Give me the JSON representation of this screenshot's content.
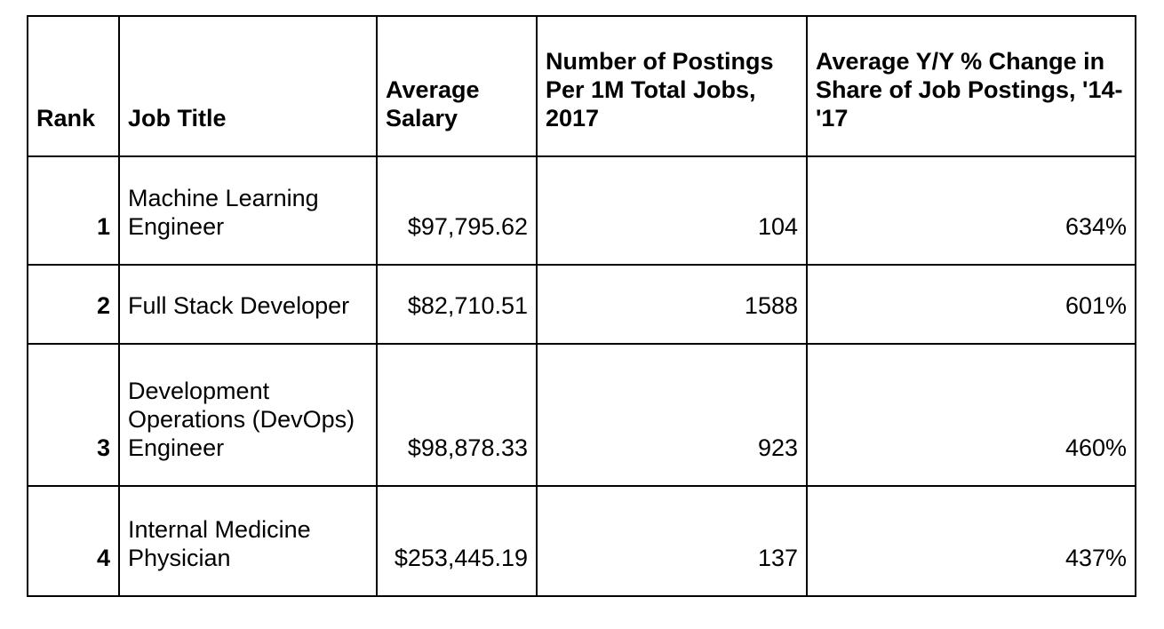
{
  "page": {
    "background_color": "#ffffff",
    "text_color": "#000000",
    "border_color": "#000000"
  },
  "table": {
    "columns": [
      {
        "id": "rank",
        "label": "Rank"
      },
      {
        "id": "job_title",
        "label": "Job Title"
      },
      {
        "id": "avg_salary",
        "label": "Average Salary"
      },
      {
        "id": "postings_per_1m",
        "label": "Number of Postings Per 1M Total Jobs, 2017"
      },
      {
        "id": "yy_change",
        "label": "Average Y/Y % Change in Share of Job Postings, '14-'17"
      }
    ],
    "rows": [
      {
        "rank": "1",
        "job_title": "Machine Learning Engineer",
        "avg_salary": "$97,795.62",
        "postings_per_1m": "104",
        "yy_change": "634%"
      },
      {
        "rank": "2",
        "job_title": "Full Stack Developer",
        "avg_salary": "$82,710.51",
        "postings_per_1m": "1588",
        "yy_change": "601%"
      },
      {
        "rank": "3",
        "job_title": "Development Operations (DevOps) Engineer",
        "avg_salary": "$98,878.33",
        "postings_per_1m": "923",
        "yy_change": "460%"
      },
      {
        "rank": "4",
        "job_title": "Internal Medicine Physician",
        "avg_salary": "$253,445.19",
        "postings_per_1m": "137",
        "yy_change": "437%"
      }
    ]
  },
  "chart_data": {
    "type": "table",
    "title": "",
    "columns": [
      "Rank",
      "Job Title",
      "Average Salary",
      "Number of Postings Per 1M Total Jobs, 2017",
      "Average Y/Y % Change in Share of Job Postings, '14-'17"
    ],
    "rows": [
      [
        1,
        "Machine Learning Engineer",
        97795.62,
        104,
        "634%"
      ],
      [
        2,
        "Full Stack Developer",
        82710.51,
        1588,
        "601%"
      ],
      [
        3,
        "Development Operations (DevOps) Engineer",
        98878.33,
        923,
        "460%"
      ],
      [
        4,
        "Internal Medicine Physician",
        253445.19,
        137,
        "437%"
      ]
    ],
    "notes": {
      "salary_format": "USD with cents",
      "yy_change_values_pct": [
        634,
        601,
        460,
        437
      ],
      "postings_values": [
        104,
        1588,
        923,
        137
      ]
    }
  }
}
